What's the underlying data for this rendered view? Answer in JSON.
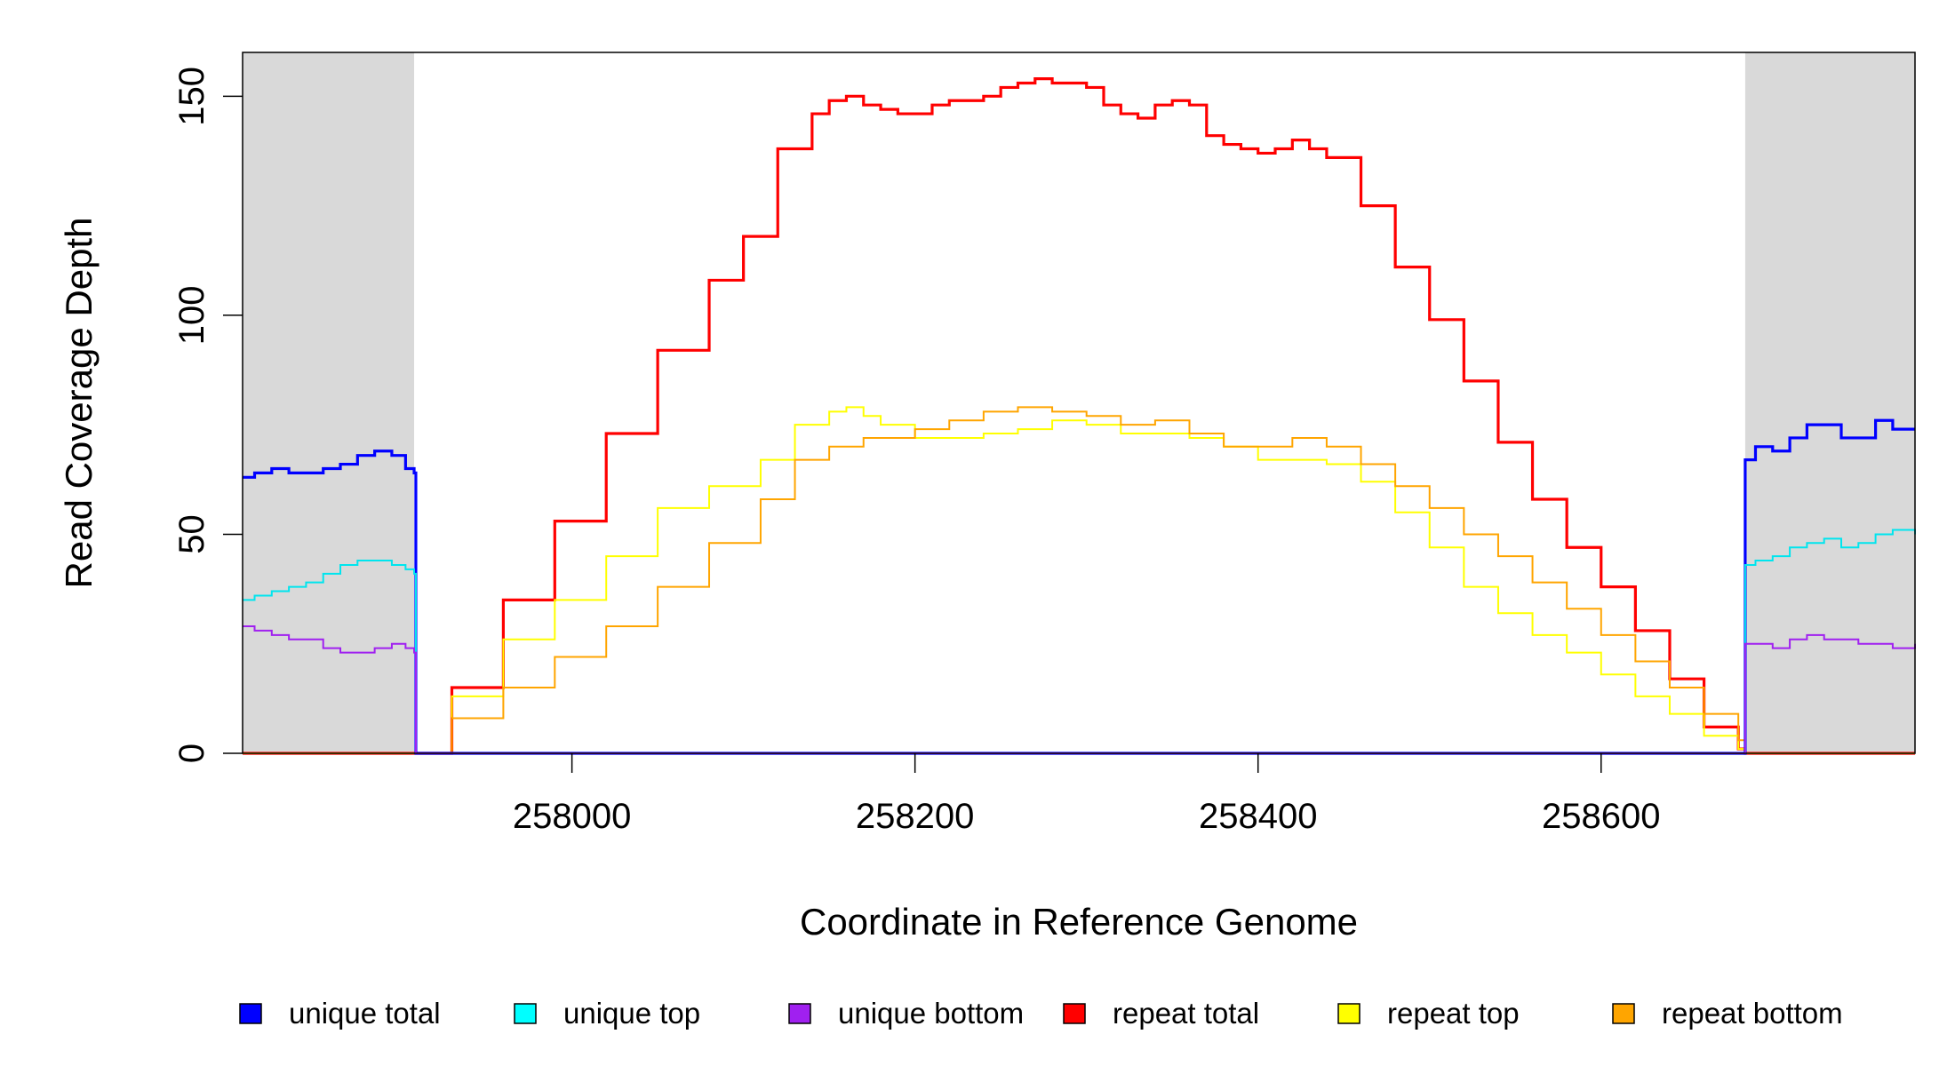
{
  "chart_data": {
    "type": "line",
    "xlabel": "Coordinate in Reference Genome",
    "ylabel": "Read Coverage Depth",
    "xlim": [
      257808,
      258783
    ],
    "ylim": [
      0,
      160
    ],
    "x_ticks": [
      {
        "value": 258000,
        "label": "258000"
      },
      {
        "value": 258200,
        "label": "258200"
      },
      {
        "value": 258400,
        "label": "258400"
      },
      {
        "value": 258600,
        "label": "258600"
      }
    ],
    "y_ticks": [
      {
        "value": 0,
        "label": "0"
      },
      {
        "value": 50,
        "label": "50"
      },
      {
        "value": 100,
        "label": "100"
      },
      {
        "value": 150,
        "label": "150"
      }
    ],
    "shaded_regions": [
      [
        257808,
        257908
      ],
      [
        258684,
        258783
      ]
    ],
    "legend_position": "bottom",
    "series": [
      {
        "name": "unique total",
        "color": "#0000ff",
        "x": [
          257808,
          257815,
          257825,
          257835,
          257845,
          257855,
          257865,
          257875,
          257885,
          257895,
          257903,
          257908,
          257909,
          258000,
          258200,
          258400,
          258600,
          258680,
          258684,
          258690,
          258700,
          258710,
          258720,
          258730,
          258740,
          258750,
          258760,
          258770,
          258783
        ],
        "y": [
          63,
          64,
          65,
          64,
          64,
          65,
          66,
          68,
          69,
          68,
          65,
          64,
          0,
          0,
          0,
          0,
          0,
          0,
          67,
          70,
          69,
          72,
          75,
          75,
          72,
          72,
          76,
          74,
          74
        ]
      },
      {
        "name": "unique top",
        "color": "#00e5ee",
        "x": [
          257808,
          257815,
          257825,
          257835,
          257845,
          257855,
          257865,
          257875,
          257885,
          257895,
          257903,
          257908,
          257909,
          258000,
          258200,
          258400,
          258600,
          258680,
          258684,
          258690,
          258700,
          258710,
          258720,
          258730,
          258740,
          258750,
          258760,
          258770,
          258783
        ],
        "y": [
          35,
          36,
          37,
          38,
          39,
          41,
          43,
          44,
          44,
          43,
          42,
          41,
          0,
          0,
          0,
          0,
          0,
          0,
          43,
          44,
          45,
          47,
          48,
          49,
          47,
          48,
          50,
          51,
          50
        ]
      },
      {
        "name": "unique bottom",
        "color": "#a020f0",
        "x": [
          257808,
          257815,
          257825,
          257835,
          257845,
          257855,
          257865,
          257875,
          257885,
          257895,
          257903,
          257908,
          257909,
          258000,
          258200,
          258400,
          258600,
          258680,
          258684,
          258690,
          258700,
          258710,
          258720,
          258730,
          258740,
          258750,
          258760,
          258770,
          258783
        ],
        "y": [
          29,
          28,
          27,
          26,
          26,
          24,
          23,
          23,
          24,
          25,
          24,
          23,
          0,
          0,
          0,
          0,
          0,
          0,
          25,
          25,
          24,
          26,
          27,
          26,
          26,
          25,
          25,
          24,
          25
        ]
      },
      {
        "name": "repeat total",
        "color": "#ff0000",
        "x": [
          257808,
          257909,
          257930,
          257960,
          257990,
          258020,
          258050,
          258080,
          258100,
          258120,
          258140,
          258150,
          258160,
          258170,
          258180,
          258190,
          258200,
          258210,
          258220,
          258230,
          258240,
          258250,
          258260,
          258270,
          258280,
          258290,
          258300,
          258310,
          258320,
          258330,
          258340,
          258350,
          258360,
          258370,
          258380,
          258390,
          258400,
          258410,
          258420,
          258430,
          258440,
          258460,
          258480,
          258500,
          258520,
          258540,
          258560,
          258580,
          258600,
          258620,
          258640,
          258660,
          258680,
          258684,
          258783
        ],
        "y": [
          0,
          0,
          15,
          35,
          53,
          73,
          92,
          108,
          118,
          138,
          146,
          149,
          150,
          148,
          147,
          146,
          146,
          148,
          149,
          149,
          150,
          152,
          153,
          154,
          153,
          153,
          152,
          148,
          146,
          145,
          148,
          149,
          148,
          141,
          139,
          138,
          137,
          138,
          140,
          138,
          136,
          125,
          111,
          99,
          85,
          71,
          58,
          47,
          38,
          28,
          17,
          6,
          1,
          0,
          0
        ]
      },
      {
        "name": "repeat top",
        "color": "#ffff00",
        "x": [
          257808,
          257909,
          257930,
          257960,
          257990,
          258020,
          258050,
          258080,
          258110,
          258130,
          258150,
          258160,
          258170,
          258180,
          258200,
          258220,
          258240,
          258260,
          258280,
          258300,
          258320,
          258340,
          258360,
          258380,
          258400,
          258420,
          258440,
          258460,
          258480,
          258500,
          258520,
          258540,
          258560,
          258580,
          258600,
          258620,
          258640,
          258660,
          258680,
          258684,
          258783
        ],
        "y": [
          0,
          0,
          13,
          26,
          35,
          45,
          56,
          61,
          67,
          75,
          78,
          79,
          77,
          75,
          72,
          72,
          73,
          74,
          76,
          75,
          73,
          73,
          72,
          70,
          67,
          67,
          66,
          62,
          55,
          47,
          38,
          32,
          27,
          23,
          18,
          13,
          9,
          4,
          1,
          0,
          0
        ]
      },
      {
        "name": "repeat bottom",
        "color": "#ffa500",
        "x": [
          257808,
          257909,
          257930,
          257960,
          257990,
          258020,
          258050,
          258080,
          258110,
          258130,
          258150,
          258170,
          258200,
          258220,
          258240,
          258260,
          258280,
          258300,
          258320,
          258340,
          258360,
          258380,
          258400,
          258420,
          258440,
          258460,
          258480,
          258500,
          258520,
          258540,
          258560,
          258580,
          258600,
          258620,
          258640,
          258660,
          258680,
          258684,
          258783
        ],
        "y": [
          0,
          0,
          8,
          15,
          22,
          29,
          38,
          48,
          58,
          67,
          70,
          72,
          74,
          76,
          78,
          79,
          78,
          77,
          75,
          76,
          73,
          70,
          70,
          72,
          70,
          66,
          61,
          56,
          50,
          45,
          39,
          33,
          27,
          21,
          15,
          9,
          3,
          0,
          0
        ]
      }
    ],
    "legend": [
      {
        "label": "unique total",
        "color": "#0000ff"
      },
      {
        "label": "unique top",
        "color": "#00ffff"
      },
      {
        "label": "unique bottom",
        "color": "#a020f0"
      },
      {
        "label": "repeat total",
        "color": "#ff0000"
      },
      {
        "label": "repeat top",
        "color": "#ffff00"
      },
      {
        "label": "repeat bottom",
        "color": "#ffa500"
      }
    ]
  }
}
